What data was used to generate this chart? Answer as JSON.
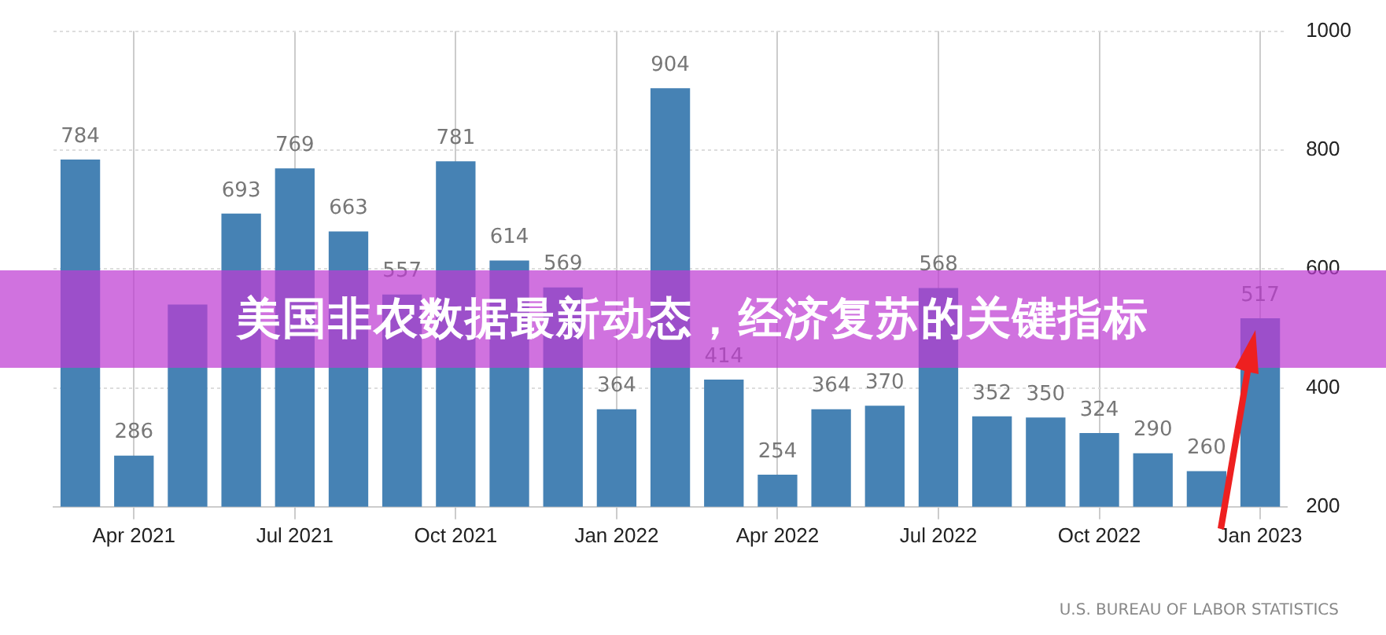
{
  "chart_data": {
    "type": "bar",
    "title": "美国非农数据最新动态，经济复苏的关键指标",
    "categories": [
      null,
      "Apr 2021",
      null,
      null,
      "Jul 2021",
      null,
      null,
      "Oct 2021",
      null,
      null,
      "Jan 2022",
      null,
      null,
      "Apr 2022",
      null,
      null,
      "Jul 2022",
      null,
      null,
      "Oct 2022",
      null,
      null,
      "Jan 2023"
    ],
    "values": [
      784,
      286,
      540,
      693,
      769,
      663,
      557,
      781,
      614,
      569,
      364,
      904,
      414,
      254,
      364,
      370,
      568,
      352,
      350,
      324,
      290,
      260,
      517
    ],
    "value_labels": [
      "784",
      "286",
      null,
      "693",
      "769",
      "663",
      "557",
      "781",
      "614",
      "569",
      "364",
      "904",
      "414",
      "254",
      "364",
      "370",
      "568",
      "352",
      "350",
      "324",
      "290",
      "260",
      "517"
    ],
    "color": "#4682b4",
    "ylim": [
      200,
      1000
    ],
    "yticks": [
      200,
      400,
      600,
      800,
      1000
    ],
    "grid": true,
    "annotations": [
      "U.S. BUREAU OF LABOR STATISTICS"
    ]
  }
}
